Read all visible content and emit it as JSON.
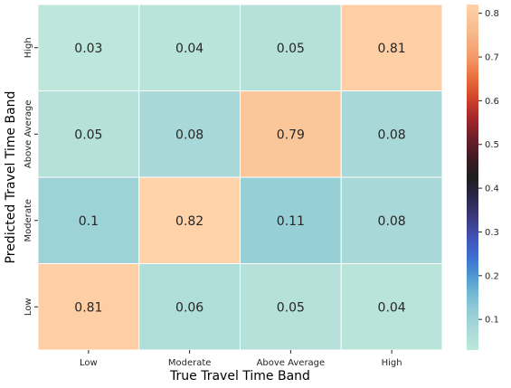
{
  "chart_data": {
    "type": "heatmap",
    "xlabel": "True Travel Time Band",
    "ylabel": "Predicted Travel Time Band",
    "x_categories": [
      "Low",
      "Moderate",
      "Above Average",
      "High"
    ],
    "y_categories": [
      "High",
      "Above Average",
      "Moderate",
      "Low"
    ],
    "values": [
      [
        0.03,
        0.04,
        0.05,
        0.81
      ],
      [
        0.05,
        0.08,
        0.79,
        0.08
      ],
      [
        0.1,
        0.82,
        0.11,
        0.08
      ],
      [
        0.81,
        0.06,
        0.05,
        0.04
      ]
    ],
    "cell_labels": [
      [
        "0.03",
        "0.04",
        "0.05",
        "0.81"
      ],
      [
        "0.05",
        "0.08",
        "0.79",
        "0.08"
      ],
      [
        "0.1",
        "0.82",
        "0.11",
        "0.08"
      ],
      [
        "0.81",
        "0.06",
        "0.05",
        "0.04"
      ]
    ],
    "colorbar": {
      "min": 0.03,
      "max": 0.82,
      "ticks": [
        "0.1",
        "0.2",
        "0.3",
        "0.4",
        "0.5",
        "0.6",
        "0.7",
        "0.8"
      ],
      "tick_values": [
        0.1,
        0.2,
        0.3,
        0.4,
        0.5,
        0.6,
        0.7,
        0.8
      ],
      "colormap": "icefire"
    },
    "colors": {
      "stops": [
        [
          0.0,
          "#bde7db"
        ],
        [
          0.06,
          "#a9d9d8"
        ],
        [
          0.12,
          "#8fcad6"
        ],
        [
          0.17,
          "#6fb5d3"
        ],
        [
          0.22,
          "#4b93d1"
        ],
        [
          0.27,
          "#3d6ed1"
        ],
        [
          0.33,
          "#4150b3"
        ],
        [
          0.39,
          "#3a3779"
        ],
        [
          0.45,
          "#272444"
        ],
        [
          0.5,
          "#1e1e1e"
        ],
        [
          0.55,
          "#3b1c23"
        ],
        [
          0.61,
          "#6b1e2a"
        ],
        [
          0.67,
          "#a3262a"
        ],
        [
          0.73,
          "#d1452a"
        ],
        [
          0.79,
          "#e9713c"
        ],
        [
          0.85,
          "#f39b6c"
        ],
        [
          0.92,
          "#f8b98b"
        ],
        [
          1.0,
          "#ffd2a9"
        ]
      ]
    }
  }
}
